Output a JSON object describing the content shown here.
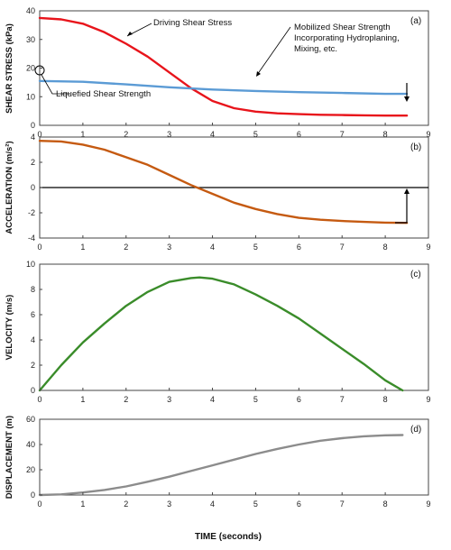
{
  "chart_data": [
    {
      "type": "line",
      "panel_label": "(a)",
      "ylabel": "SHEAR STRESS (kPa)",
      "xlim": [
        0,
        9
      ],
      "ylim": [
        0,
        40
      ],
      "xticks": [
        "0",
        "1",
        "2",
        "3",
        "4",
        "5",
        "6",
        "7",
        "8",
        "9"
      ],
      "yticks": [
        "0",
        "10",
        "20",
        "30",
        "40"
      ],
      "series": [
        {
          "color": "#e8141b",
          "x": [
            0,
            0.5,
            1,
            1.5,
            2,
            2.5,
            3,
            3.5,
            4,
            4.5,
            5,
            5.5,
            6,
            6.5,
            7,
            7.5,
            8,
            8.5
          ],
          "y": [
            37.5,
            37,
            35.5,
            32.5,
            28.5,
            24,
            18.5,
            13,
            8.5,
            6,
            4.8,
            4.2,
            3.9,
            3.7,
            3.6,
            3.5,
            3.4,
            3.4
          ]
        },
        {
          "color": "#5b9bd5",
          "x": [
            0,
            1,
            2,
            3,
            4,
            5,
            6,
            7,
            8,
            8.5
          ],
          "y": [
            15.5,
            15.2,
            14.3,
            13.3,
            12.5,
            12,
            11.6,
            11.3,
            11,
            11
          ]
        }
      ],
      "annotations": [
        {
          "text": "Driving Shear Stress"
        },
        {
          "text": "Mobilized Shear Strength"
        },
        {
          "text": "Incorporating Hydroplaning,"
        },
        {
          "text": "Mixing, etc."
        },
        {
          "text": "Liquefied Shear Strength"
        }
      ]
    },
    {
      "type": "line",
      "panel_label": "(b)",
      "ylabel": "ACCELERATION (m/s²)",
      "xlim": [
        0,
        9
      ],
      "ylim": [
        -4,
        4
      ],
      "xticks": [
        "0",
        "1",
        "2",
        "3",
        "4",
        "5",
        "6",
        "7",
        "8",
        "9"
      ],
      "yticks": [
        "-4",
        "-2",
        "0",
        "2",
        "4"
      ],
      "series": [
        {
          "color": "#c55a11",
          "x": [
            0,
            0.5,
            1,
            1.5,
            2,
            2.5,
            3,
            3.5,
            4,
            4.5,
            5,
            5.5,
            6,
            6.5,
            7,
            7.5,
            8,
            8.5
          ],
          "y": [
            3.7,
            3.65,
            3.4,
            3,
            2.4,
            1.8,
            1,
            0.2,
            -0.5,
            -1.2,
            -1.7,
            -2.1,
            -2.4,
            -2.55,
            -2.65,
            -2.72,
            -2.78,
            -2.8
          ]
        }
      ]
    },
    {
      "type": "line",
      "panel_label": "(c)",
      "ylabel": "VELOCITY (m/s)",
      "xlim": [
        0,
        9
      ],
      "ylim": [
        0,
        10
      ],
      "xticks": [
        "0",
        "1",
        "2",
        "3",
        "4",
        "5",
        "6",
        "7",
        "8",
        "9"
      ],
      "yticks": [
        "0",
        "2",
        "4",
        "6",
        "8",
        "10"
      ],
      "series": [
        {
          "color": "#3a8c2a",
          "x": [
            0,
            0.5,
            1,
            1.5,
            2,
            2.5,
            3,
            3.5,
            3.7,
            4,
            4.5,
            5,
            5.5,
            6,
            6.5,
            7,
            7.5,
            8,
            8.4
          ],
          "y": [
            0,
            2,
            3.8,
            5.3,
            6.7,
            7.8,
            8.6,
            8.9,
            8.95,
            8.85,
            8.4,
            7.6,
            6.7,
            5.7,
            4.5,
            3.3,
            2.1,
            0.8,
            0
          ]
        }
      ]
    },
    {
      "type": "line",
      "panel_label": "(d)",
      "ylabel": "DISPLACEMENT (m)",
      "xlabel": "TIME (seconds)",
      "xlim": [
        0,
        9
      ],
      "ylim": [
        0,
        60
      ],
      "xticks": [
        "0",
        "1",
        "2",
        "3",
        "4",
        "5",
        "6",
        "7",
        "8",
        "9"
      ],
      "yticks": [
        "0",
        "20",
        "40",
        "60"
      ],
      "series": [
        {
          "color": "#8c8c8c",
          "x": [
            0,
            0.5,
            1,
            1.5,
            2,
            2.5,
            3,
            3.5,
            4,
            4.5,
            5,
            5.5,
            6,
            6.5,
            7,
            7.5,
            8,
            8.4
          ],
          "y": [
            0,
            0.5,
            2,
            4,
            6.8,
            10.5,
            14.5,
            19,
            23.5,
            28,
            32.5,
            36.5,
            40,
            43,
            45,
            46.5,
            47.3,
            47.5
          ]
        }
      ]
    }
  ]
}
